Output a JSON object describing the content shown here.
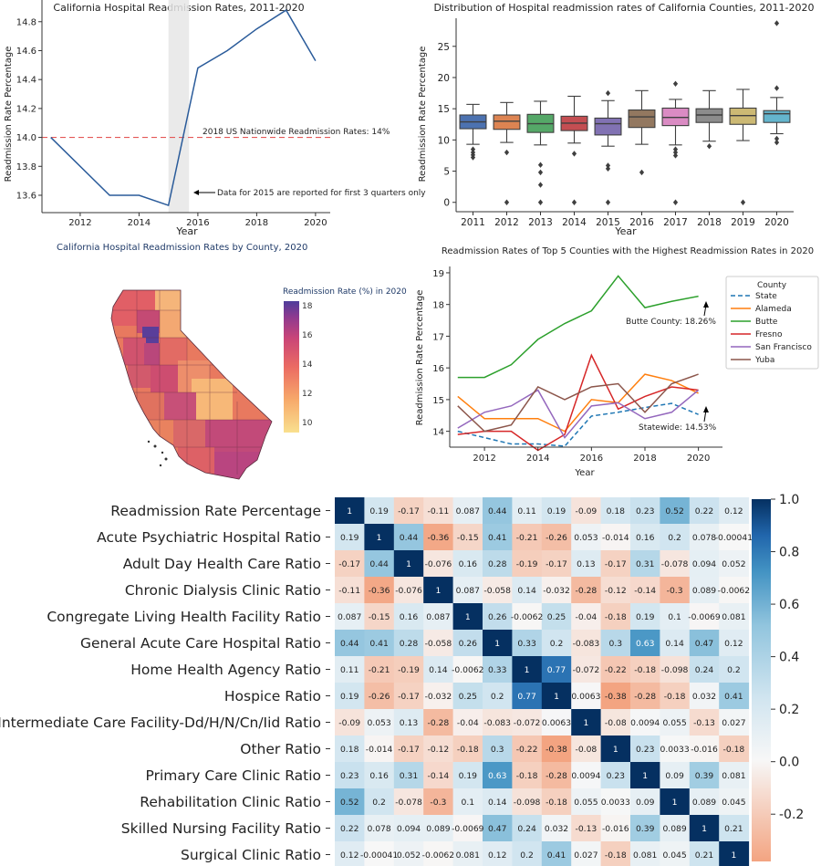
{
  "chart_data": [
    {
      "type": "line",
      "title": "California Hospital Readmission Rates, 2011-2020",
      "xlabel": "Year",
      "ylabel": "Readmission Rate Percentage",
      "x": [
        2011,
        2013,
        2014,
        2015,
        2016,
        2017,
        2018,
        2019,
        2020
      ],
      "y": [
        14.0,
        13.6,
        13.6,
        13.53,
        14.48,
        14.6,
        14.75,
        14.88,
        14.53
      ],
      "xlim": [
        2010.7,
        2020.5
      ],
      "ylim": [
        13.48,
        14.95
      ],
      "xticks": [
        2012,
        2014,
        2016,
        2018,
        2020
      ],
      "yticks": [
        13.6,
        13.8,
        14.0,
        14.2,
        14.4,
        14.6,
        14.8
      ],
      "reference_line": {
        "y": 14.0,
        "label": "2018 US Nationwide Readmission Rates: 14%",
        "color": "#e45756"
      },
      "shaded_span": [
        2015,
        2015.7
      ],
      "annotation": {
        "text": "Data for 2015 are reported for first 3 quarters only",
        "x": 2015.6,
        "y": 13.6
      },
      "line_color": "#2a5b9a",
      "grid": false
    },
    {
      "type": "box",
      "title": "Distribution of Hospital readmission rates of California Counties, 2011-2020",
      "xlabel": "Year",
      "ylabel": "Readmission Rate Percentage",
      "categories": [
        "2011",
        "2012",
        "2013",
        "2014",
        "2015",
        "2016",
        "2017",
        "2018",
        "2019",
        "2020"
      ],
      "ylim": [
        -1.5,
        29.5
      ],
      "yticks": [
        0,
        5,
        10,
        15,
        20,
        25
      ],
      "boxes": [
        {
          "whislo": 9.3,
          "q1": 11.8,
          "med": 12.9,
          "q3": 14.0,
          "whishi": 15.7,
          "fliers": [
            8.5,
            8.0,
            7.6,
            7.2
          ]
        },
        {
          "whislo": 9.6,
          "q1": 11.7,
          "med": 13.0,
          "q3": 14.0,
          "whishi": 16.0,
          "fliers": [
            8.0,
            0
          ]
        },
        {
          "whislo": 9.2,
          "q1": 11.2,
          "med": 12.6,
          "q3": 14.1,
          "whishi": 16.2,
          "fliers": [
            6.0,
            4.8,
            2.8,
            0
          ]
        },
        {
          "whislo": 9.5,
          "q1": 11.5,
          "med": 12.7,
          "q3": 13.8,
          "whishi": 17.0,
          "fliers": [
            7.8,
            0
          ]
        },
        {
          "whislo": 9.0,
          "q1": 10.8,
          "med": 12.6,
          "q3": 13.5,
          "whishi": 16.3,
          "fliers": [
            17.5,
            5.9,
            5.4,
            0
          ]
        },
        {
          "whislo": 9.3,
          "q1": 12.0,
          "med": 13.7,
          "q3": 14.8,
          "whishi": 17.9,
          "fliers": [
            4.8
          ]
        },
        {
          "whislo": 9.2,
          "q1": 12.3,
          "med": 13.6,
          "q3": 15.1,
          "whishi": 16.5,
          "fliers": [
            19.0,
            8.5,
            8.0,
            7.5,
            0
          ]
        },
        {
          "whislo": 9.8,
          "q1": 12.8,
          "med": 14.0,
          "q3": 15.0,
          "whishi": 17.9,
          "fliers": [
            9.0
          ]
        },
        {
          "whislo": 9.9,
          "q1": 12.5,
          "med": 13.9,
          "q3": 15.1,
          "whishi": 18.1,
          "fliers": [
            0
          ]
        },
        {
          "whislo": 11.0,
          "q1": 12.8,
          "med": 14.2,
          "q3": 14.7,
          "whishi": 16.8,
          "fliers": [
            28.7,
            18.3,
            10.2,
            9.6
          ]
        }
      ],
      "colors": [
        "#4c72b0",
        "#dd8452",
        "#55a868",
        "#c44e52",
        "#8172b3",
        "#937860",
        "#da8bc3",
        "#8c8c8c",
        "#ccb974",
        "#64b5cd"
      ],
      "grid": false
    },
    {
      "type": "choropleth",
      "title": "California Hospital Readmission Rates by County, 2020",
      "colorbar_title": "Readmission Rate (%) in 2020",
      "colorbar_ticks": [
        10,
        12,
        14,
        16,
        18
      ],
      "colorbar_range": [
        9.3,
        18.3
      ],
      "colorscale": [
        "#f9e08e",
        "#f7a96a",
        "#eb6b63",
        "#c94478",
        "#8e3a8f",
        "#4e3d9b"
      ]
    },
    {
      "type": "line",
      "title": "Readmission Rates of Top 5 Counties with the Highest Readmission Rates in 2020",
      "xlabel": "Year",
      "ylabel": "Readmission Rate Percentage",
      "x": [
        2011,
        2012,
        2013,
        2014,
        2015,
        2016,
        2017,
        2018,
        2019,
        2020
      ],
      "xlim": [
        2010.7,
        2020.9
      ],
      "ylim": [
        13.5,
        19.2
      ],
      "xticks": [
        2012,
        2014,
        2016,
        2018,
        2020
      ],
      "yticks": [
        14,
        15,
        16,
        17,
        18,
        19
      ],
      "legend_title": "County",
      "legend_position": "right",
      "series": [
        {
          "name": "State",
          "color": "#1f77b4",
          "dashed": true,
          "values": [
            14.0,
            13.8,
            13.6,
            13.6,
            13.53,
            14.48,
            14.6,
            14.75,
            14.88,
            14.53
          ]
        },
        {
          "name": "Alameda",
          "color": "#ff7f0e",
          "values": [
            15.1,
            14.4,
            14.4,
            14.4,
            14.0,
            15.0,
            14.9,
            15.8,
            15.6,
            15.2
          ]
        },
        {
          "name": "Butte",
          "color": "#2ca02c",
          "values": [
            15.7,
            15.7,
            16.1,
            16.9,
            17.4,
            17.8,
            18.9,
            17.9,
            18.1,
            18.26
          ]
        },
        {
          "name": "Fresno",
          "color": "#d62728",
          "values": [
            13.9,
            14.0,
            14.0,
            13.4,
            13.9,
            16.4,
            14.7,
            15.1,
            15.4,
            15.3
          ]
        },
        {
          "name": "San Francisco",
          "color": "#9467bd",
          "values": [
            14.1,
            14.6,
            14.8,
            15.3,
            13.8,
            14.8,
            14.9,
            14.4,
            14.6,
            15.3
          ]
        },
        {
          "name": "Yuba",
          "color": "#8c564b",
          "values": [
            14.8,
            14.0,
            14.2,
            15.4,
            15.0,
            15.4,
            15.5,
            14.6,
            15.5,
            15.8
          ]
        }
      ],
      "annotations": [
        {
          "text": "Butte County: 18.26%",
          "x": 2020,
          "y": 18.26
        },
        {
          "text": "Statewide: 14.53%",
          "x": 2020,
          "y": 14.53
        }
      ],
      "grid": false
    },
    {
      "type": "heatmap",
      "rows": [
        "Readmission Rate Percentage",
        "Acute Psychiatric Hospital Ratio",
        "Adult Day Health Care Ratio",
        "Chronic Dialysis Clinic Ratio",
        "Congregate Living Health Facility Ratio",
        "General Acute Care Hospital Ratio",
        "Home Health Agency Ratio",
        "Hospice Ratio",
        "Intermediate Care Facility-Dd/H/N/Cn/Iid Ratio",
        "Other Ratio",
        "Primary Care Clinic Ratio",
        "Rehabilitation Clinic Ratio",
        "Skilled Nursing Facility Ratio",
        "Surgical Clinic Ratio"
      ],
      "values": [
        [
          1,
          0.19,
          -0.17,
          -0.11,
          0.087,
          0.44,
          0.11,
          0.19,
          -0.09,
          0.18,
          0.23,
          0.52,
          0.22,
          0.12
        ],
        [
          0.19,
          1,
          0.44,
          -0.36,
          -0.15,
          0.41,
          -0.21,
          -0.26,
          0.053,
          -0.014,
          0.16,
          0.2,
          0.078,
          -0.00041
        ],
        [
          -0.17,
          0.44,
          1,
          -0.076,
          0.16,
          0.28,
          -0.19,
          -0.17,
          0.13,
          -0.17,
          0.31,
          -0.078,
          0.094,
          0.052
        ],
        [
          -0.11,
          -0.36,
          -0.076,
          1,
          0.087,
          -0.058,
          0.14,
          -0.032,
          -0.28,
          -0.12,
          -0.14,
          -0.3,
          0.089,
          -0.0062
        ],
        [
          0.087,
          -0.15,
          0.16,
          0.087,
          1,
          0.26,
          -0.0062,
          0.25,
          -0.04,
          -0.18,
          0.19,
          0.1,
          -0.0069,
          0.081
        ],
        [
          0.44,
          0.41,
          0.28,
          -0.058,
          0.26,
          1,
          0.33,
          0.2,
          -0.083,
          0.3,
          0.63,
          0.14,
          0.47,
          0.12
        ],
        [
          0.11,
          -0.21,
          -0.19,
          0.14,
          -0.0062,
          0.33,
          1,
          0.77,
          -0.072,
          -0.22,
          -0.18,
          -0.098,
          0.24,
          0.2
        ],
        [
          0.19,
          -0.26,
          -0.17,
          -0.032,
          0.25,
          0.2,
          0.77,
          1,
          0.0063,
          -0.38,
          -0.28,
          -0.18,
          0.032,
          0.41
        ],
        [
          -0.09,
          0.053,
          0.13,
          -0.28,
          -0.04,
          -0.083,
          -0.072,
          0.0063,
          1,
          -0.08,
          0.0094,
          0.055,
          -0.13,
          0.027
        ],
        [
          0.18,
          -0.014,
          -0.17,
          -0.12,
          -0.18,
          0.3,
          -0.22,
          -0.38,
          -0.08,
          1,
          0.23,
          0.0033,
          -0.016,
          -0.18
        ],
        [
          0.23,
          0.16,
          0.31,
          -0.14,
          0.19,
          0.63,
          -0.18,
          -0.28,
          0.0094,
          0.23,
          1,
          0.09,
          0.39,
          0.081
        ],
        [
          0.52,
          0.2,
          -0.078,
          -0.3,
          0.1,
          0.14,
          -0.098,
          -0.18,
          0.055,
          0.0033,
          0.09,
          1,
          0.089,
          0.045
        ],
        [
          0.22,
          0.078,
          0.094,
          0.089,
          -0.0069,
          0.47,
          0.24,
          0.032,
          -0.13,
          -0.016,
          0.39,
          0.089,
          1,
          0.21
        ],
        [
          0.12,
          -0.00041,
          0.052,
          -0.0062,
          0.081,
          0.12,
          0.2,
          0.41,
          0.027,
          -0.18,
          0.081,
          0.045,
          0.21,
          1
        ]
      ],
      "colorbar_ticks": [
        "1.0",
        "0.8",
        "0.6",
        "0.4",
        "0.2",
        "0.0",
        "-0.2"
      ],
      "colorbar_range": [
        -0.38,
        1.0
      ],
      "colorscale": "RdBu"
    }
  ]
}
